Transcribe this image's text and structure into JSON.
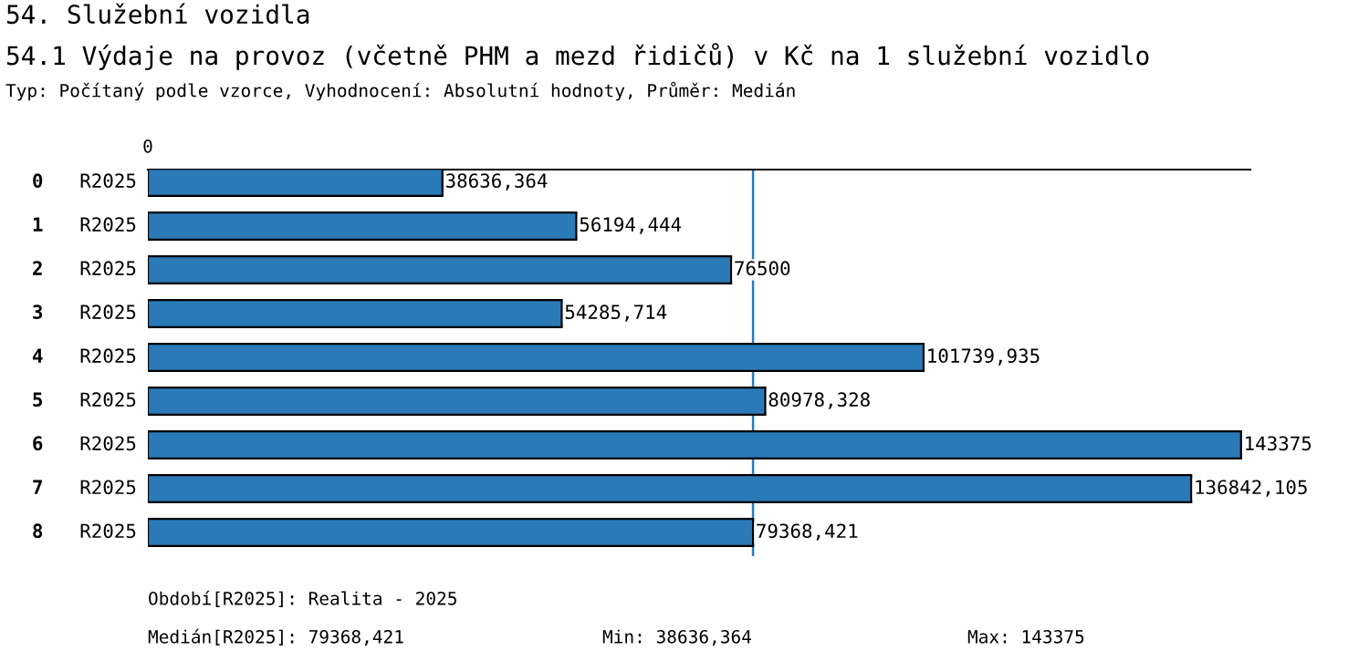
{
  "chart_data": {
    "type": "bar",
    "orientation": "horizontal",
    "title": "54. Služební vozidla",
    "subtitle": "54.1 Výdaje na provoz (včetně PHM a mezd řidičů) v Kč na 1 služební vozidlo",
    "categories": [
      "0",
      "1",
      "2",
      "3",
      "4",
      "5",
      "6",
      "7",
      "8"
    ],
    "series": [
      {
        "name": "R2025",
        "color": "#2a7ab8",
        "values": [
          38636.364,
          56194.444,
          76500,
          54285.714,
          101739.935,
          80978.328,
          143375,
          136842.105,
          79368.421
        ],
        "value_labels": [
          "38636,364",
          "56194,444",
          "76500",
          "54285,714",
          "101739,935",
          "80978,328",
          "143375",
          "136842,105",
          "79368,421"
        ]
      }
    ],
    "legend": false,
    "ref_lines": [
      {
        "axis": "x",
        "value": 79368.421,
        "color": "#2a7ab8"
      }
    ],
    "annotations": [
      "0",
      "Typ: Počítaný podle vzorce, Vyhodnocení: Absolutní hodnoty, Průměr: Medián",
      "Období[R2025]: Realita - 2025",
      "Medián[R2025]: 79368,421",
      "Min: 38636,364",
      "Max: 143375"
    ]
  }
}
